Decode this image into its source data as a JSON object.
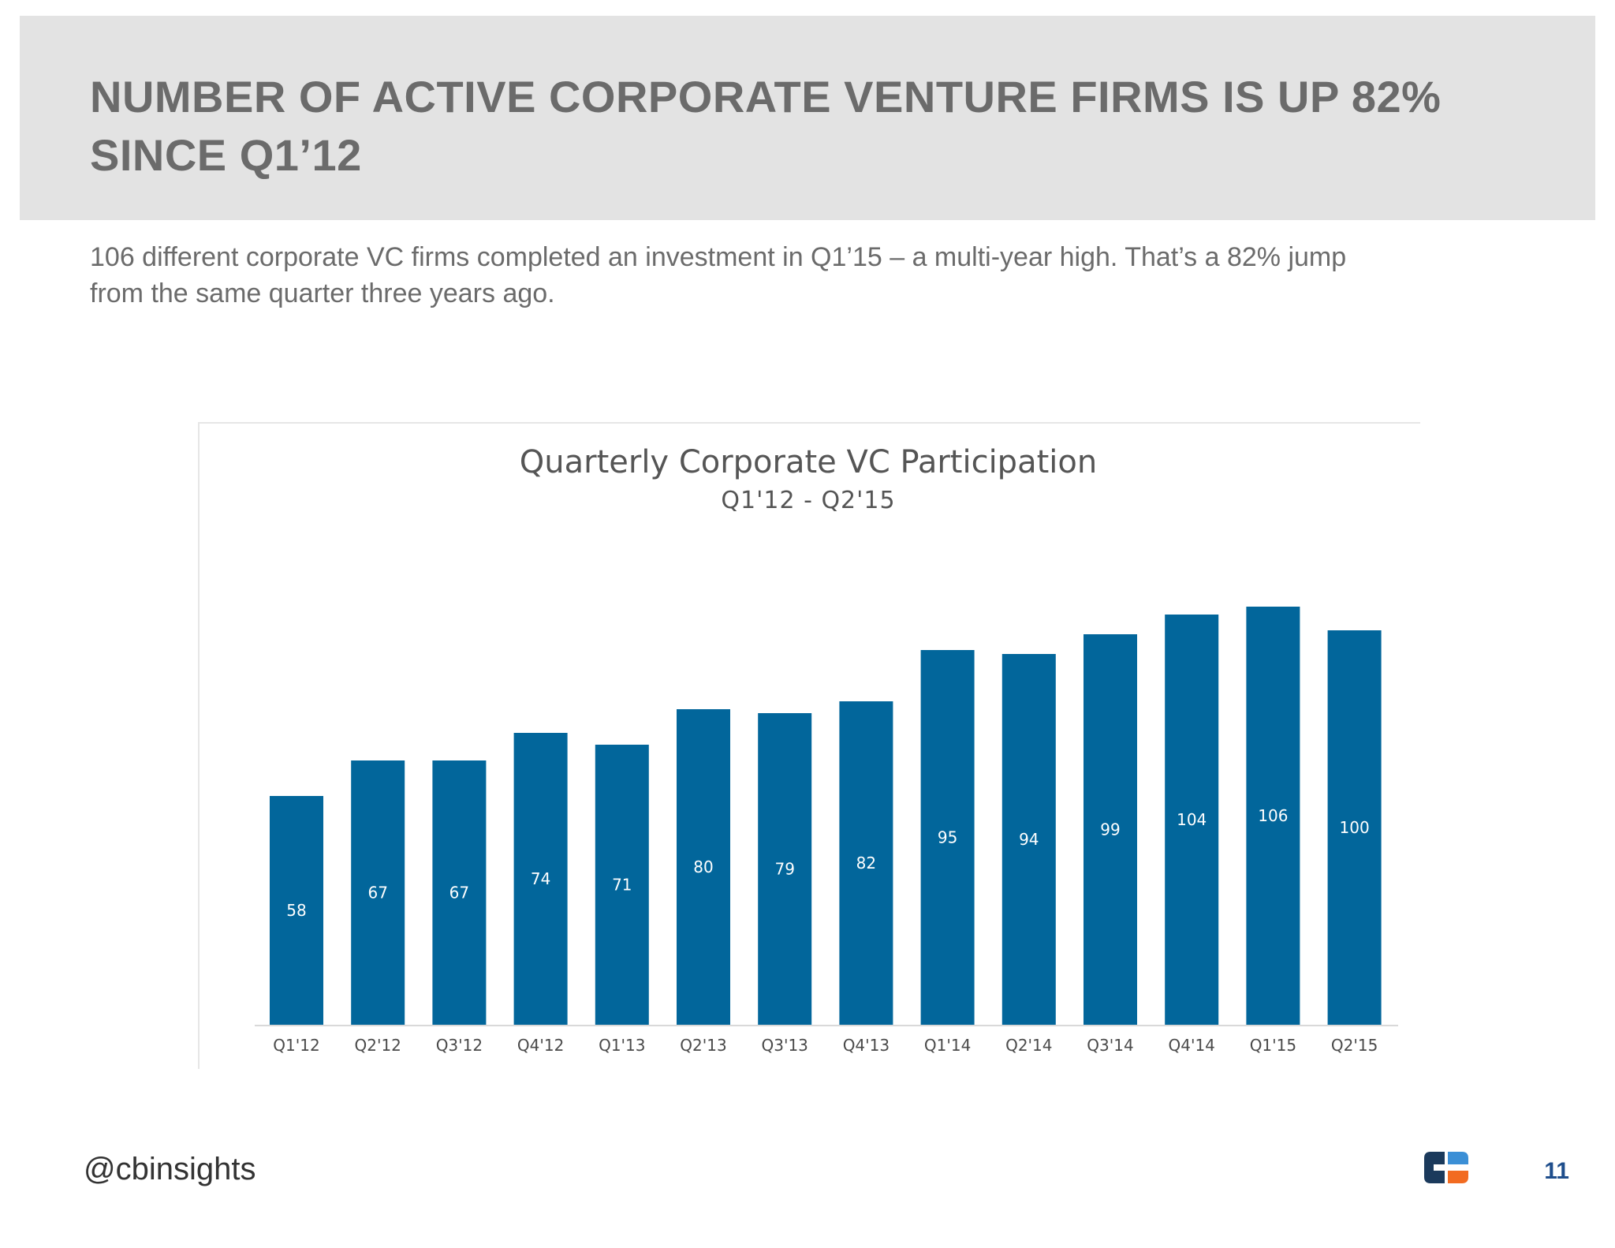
{
  "header": {
    "title": "NUMBER OF ACTIVE CORPORATE VENTURE FIRMS IS UP 82% SINCE Q1’12",
    "subtitle_line1": "106 different corporate VC firms completed an investment in Q1’15 – a multi-year high. That’s a 82% jump",
    "subtitle_line2": "from the same quarter three years ago."
  },
  "chart_data": {
    "type": "bar",
    "title": "Quarterly Corporate VC Participation",
    "subtitle": "Q1'12 - Q2'15",
    "categories": [
      "Q1'12",
      "Q2'12",
      "Q3'12",
      "Q4'12",
      "Q1'13",
      "Q2'13",
      "Q3'13",
      "Q4'13",
      "Q1'14",
      "Q2'14",
      "Q3'14",
      "Q4'14",
      "Q1'15",
      "Q2'15"
    ],
    "values": [
      58,
      67,
      67,
      74,
      71,
      80,
      79,
      82,
      95,
      94,
      99,
      104,
      106,
      100
    ],
    "data_labels": true,
    "grid": false,
    "legend": "none",
    "bar_color": "#02669b"
  },
  "footer": {
    "handle": "@cbinsights",
    "page_number": "11",
    "logo_icon": "cb-insights-logo",
    "logo_colors": [
      "#1b3a5c",
      "#3b8fd6",
      "#f26b21"
    ]
  }
}
